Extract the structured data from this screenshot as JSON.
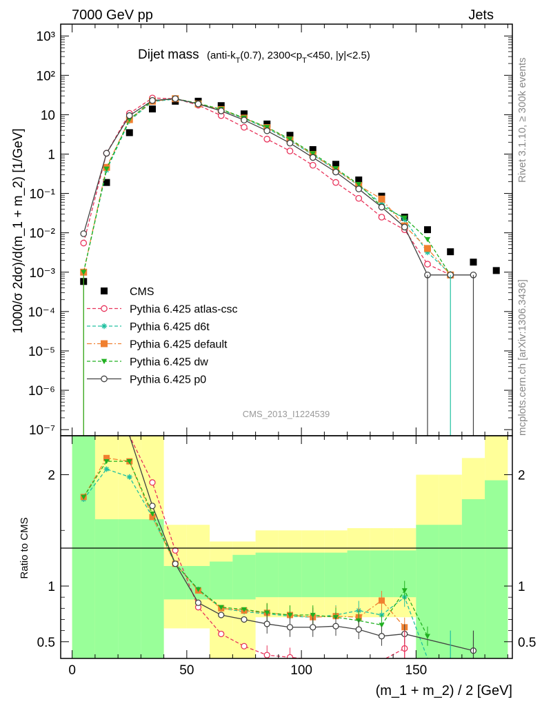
{
  "header": {
    "left": "7000 GeV pp",
    "right": "Jets"
  },
  "side_labels": {
    "rivet": "Rivet 3.1.10, ≥ 300k events",
    "mcplots": "mcplots.cern.ch [arXiv:1306.3436]"
  },
  "watermark": "CMS_2013_I1224539",
  "title": {
    "main": "Dijet mass",
    "detail_prefix": "(anti-k",
    "detail_sub1": "T",
    "detail_mid": "(0.7), 2300<p",
    "detail_sub2": "T",
    "detail_suffix": "<450, |y|<2.5)"
  },
  "chart_data": [
    {
      "type": "scatter",
      "panel": "main",
      "ylabel": "1000/σ 2dσ)/d(m_1 + m_2) [1/GeV]",
      "yscale": "log",
      "ylim": [
        7e-08,
        2000
      ],
      "xlim": [
        -5,
        192
      ],
      "legend_position": "lower-left",
      "y_ticks": [
        {
          "value": 1000,
          "label": "10³"
        },
        {
          "value": 100,
          "label": "10²"
        },
        {
          "value": 10,
          "label": "10"
        },
        {
          "value": 1,
          "label": "1"
        },
        {
          "value": 0.1,
          "label": "10⁻¹"
        },
        {
          "value": 0.01,
          "label": "10⁻²"
        },
        {
          "value": 0.001,
          "label": "10⁻³"
        },
        {
          "value": 0.0001,
          "label": "10⁻⁴"
        },
        {
          "value": 1e-05,
          "label": "10⁻⁵"
        },
        {
          "value": 1e-06,
          "label": "10⁻⁶"
        },
        {
          "value": 1e-07,
          "label": "10⁻⁷"
        }
      ],
      "series": [
        {
          "name": "CMS",
          "color": "#000000",
          "marker": "square-filled",
          "line": "none",
          "x": [
            5,
            15,
            25,
            35,
            45,
            55,
            65,
            75,
            85,
            95,
            105,
            115,
            125,
            135,
            145,
            155,
            165,
            175,
            185
          ],
          "y": [
            0.00058,
            0.19,
            3.5,
            14,
            22,
            22,
            17,
            10.5,
            5.8,
            3.0,
            1.3,
            0.55,
            0.22,
            0.085,
            0.025,
            0.012,
            0.0033,
            0.0018,
            0.0011
          ]
        },
        {
          "name": "Pythia 6.425 atlas-csc",
          "color": "#e8325a",
          "marker": "circle-open",
          "line": "dashed",
          "x": [
            5,
            15,
            25,
            35,
            45,
            55,
            65,
            75,
            85,
            95,
            105,
            115,
            125,
            135,
            145,
            155,
            165
          ],
          "y": [
            0.0055,
            1.05,
            10.8,
            26.5,
            25.5,
            17.5,
            9.5,
            4.8,
            2.4,
            1.2,
            0.52,
            0.19,
            0.075,
            0.025,
            0.012,
            0.0016,
            0.00085
          ]
        },
        {
          "name": "Pythia 6.425 d6t",
          "color": "#20c0a0",
          "marker": "asterisk",
          "line": "dashed",
          "x": [
            5,
            15,
            25,
            35,
            45,
            55,
            65,
            75,
            85,
            95,
            105,
            115,
            125,
            135,
            145,
            155,
            165
          ],
          "y": [
            0.001,
            0.39,
            7.0,
            21.5,
            25.0,
            18.5,
            13.2,
            8.0,
            4.5,
            2.2,
            0.95,
            0.4,
            0.16,
            0.055,
            0.022,
            0.0032,
            0.0009
          ]
        },
        {
          "name": "Pythia 6.425 default",
          "color": "#f08030",
          "marker": "square-filled",
          "line": "dashdot",
          "x": [
            5,
            15,
            25,
            35,
            45,
            55,
            65,
            75,
            85,
            95,
            105,
            115,
            125,
            135,
            145,
            155,
            165
          ],
          "y": [
            0.001,
            0.46,
            7.5,
            22.0,
            25.5,
            18.8,
            13.5,
            8.2,
            4.7,
            2.3,
            0.98,
            0.4,
            0.16,
            0.072,
            0.015,
            0.004,
            0.00085
          ]
        },
        {
          "name": "Pythia 6.425 dw",
          "color": "#20b020",
          "marker": "triangle-down-filled",
          "line": "dashed",
          "x": [
            5,
            15,
            25,
            35,
            45,
            55,
            65,
            75,
            85,
            95,
            105,
            115,
            125,
            135,
            145,
            155,
            165
          ],
          "y": [
            0.001,
            0.42,
            7.6,
            23.0,
            25.5,
            19.5,
            13.8,
            8.3,
            4.8,
            2.4,
            1.03,
            0.43,
            0.17,
            0.047,
            0.024,
            0.0068,
            0.00085
          ]
        },
        {
          "name": "Pythia 6.425 p0",
          "color": "#404040",
          "marker": "circle-open",
          "line": "solid",
          "x": [
            5,
            15,
            25,
            35,
            45,
            55,
            65,
            75,
            85,
            95,
            105,
            115,
            125,
            135,
            145,
            155,
            165,
            175
          ],
          "y": [
            0.0095,
            1.05,
            9.5,
            23.0,
            25.5,
            18.8,
            12.5,
            7.3,
            3.9,
            1.9,
            0.82,
            0.35,
            0.13,
            0.045,
            0.014,
            0.00085,
            0.00085,
            0.00085
          ]
        }
      ]
    },
    {
      "type": "scatter",
      "panel": "ratio",
      "ylabel": "Ratio to CMS",
      "xlabel": "(m_1 + m_2) / 2 [GeV]",
      "xlim": [
        -5,
        192
      ],
      "ylim": [
        0.35,
        2.35
      ],
      "x_ticks": [
        0,
        50,
        100,
        150
      ],
      "y_ticks": [
        0.5,
        1,
        2
      ],
      "bands": {
        "x_edges": [
          0,
          10,
          20,
          30,
          40,
          50,
          60,
          70,
          80,
          90,
          100,
          110,
          120,
          130,
          140,
          150,
          160,
          170,
          180,
          190
        ],
        "inner_lo": [
          0.35,
          0.35,
          0.35,
          0.35,
          0.88,
          0.88,
          0.88,
          0.88,
          0.9,
          0.9,
          0.9,
          0.9,
          0.9,
          0.9,
          0.9,
          0.35,
          0.35,
          0.35,
          0.35
        ],
        "inner_hi": [
          2.35,
          1.6,
          1.6,
          1.6,
          1.18,
          1.18,
          1.22,
          1.28,
          1.3,
          1.3,
          1.3,
          1.3,
          1.32,
          1.32,
          1.32,
          1.55,
          1.55,
          1.78,
          1.95
        ],
        "outer_lo": [
          0.35,
          0.35,
          0.59,
          0.35,
          0.62,
          0.62,
          0.35,
          0.35,
          0.72,
          0.72,
          0.72,
          0.72,
          0.72,
          0.72,
          0.72,
          0.35,
          0.35,
          0.35,
          0.35
        ],
        "outer_hi": [
          2.35,
          2.35,
          2.35,
          2.35,
          1.55,
          1.55,
          1.4,
          1.4,
          1.5,
          1.5,
          1.5,
          1.5,
          1.52,
          1.52,
          1.52,
          2.0,
          2.0,
          2.15,
          2.35
        ]
      },
      "series": [
        {
          "name": "Pythia 6.425 atlas-csc",
          "color": "#e8325a",
          "x": [
            15,
            25,
            35,
            45,
            55,
            65,
            75,
            85,
            95,
            105,
            115,
            125,
            135,
            145
          ],
          "y": [
            2.35,
            2.35,
            1.93,
            1.32,
            0.81,
            0.57,
            0.46,
            0.38,
            0.36,
            0.34,
            0.33,
            0.33,
            0.33,
            0.44
          ]
        },
        {
          "name": "Pythia 6.425 d6t",
          "color": "#20c0a0",
          "x": [
            5,
            15,
            25,
            35,
            45,
            55,
            65,
            75,
            85,
            95,
            105,
            115,
            125,
            135,
            145,
            155
          ],
          "y": [
            1.78,
            2.05,
            1.98,
            1.62,
            1.2,
            0.97,
            0.8,
            0.77,
            0.75,
            0.73,
            0.72,
            0.74,
            0.78,
            0.74,
            0.9,
            0.35
          ]
        },
        {
          "name": "Pythia 6.425 default",
          "color": "#f08030",
          "x": [
            5,
            15,
            25,
            35,
            45,
            55,
            65,
            75,
            85,
            95,
            105,
            115,
            125,
            135,
            145
          ],
          "y": [
            1.8,
            2.15,
            2.12,
            1.62,
            1.2,
            0.96,
            0.8,
            0.78,
            0.76,
            0.74,
            0.72,
            0.73,
            0.72,
            0.87,
            0.63
          ]
        },
        {
          "name": "Pythia 6.425 dw",
          "color": "#20b020",
          "x": [
            5,
            15,
            25,
            35,
            45,
            55,
            65,
            75,
            85,
            95,
            105,
            115,
            125,
            135,
            145,
            155
          ],
          "y": [
            1.8,
            2.12,
            2.12,
            1.65,
            1.2,
            0.97,
            0.81,
            0.79,
            0.76,
            0.74,
            0.74,
            0.72,
            0.69,
            0.65,
            0.96,
            0.55
          ]
        },
        {
          "name": "Pythia 6.425 p0",
          "color": "#404040",
          "x": [
            25,
            35,
            45,
            55,
            65,
            75,
            85,
            95,
            105,
            115,
            125,
            135,
            145,
            175
          ],
          "y": [
            2.35,
            1.72,
            1.2,
            0.85,
            0.74,
            0.7,
            0.66,
            0.63,
            0.63,
            0.64,
            0.61,
            0.55,
            0.57,
            0.42
          ]
        }
      ]
    }
  ]
}
